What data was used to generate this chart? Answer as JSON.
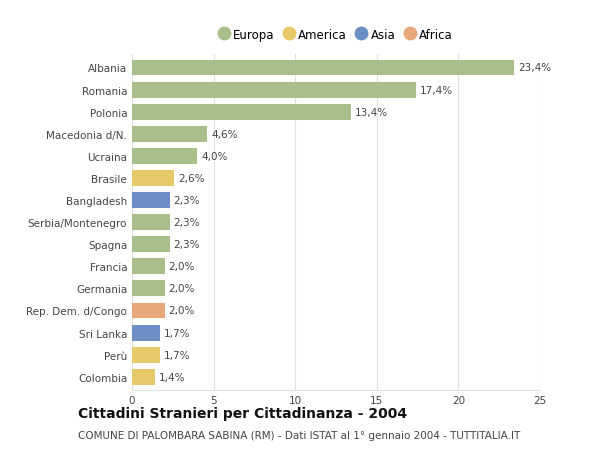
{
  "categories": [
    "Albania",
    "Romania",
    "Polonia",
    "Macedonia d/N.",
    "Ucraina",
    "Brasile",
    "Bangladesh",
    "Serbia/Montenegro",
    "Spagna",
    "Francia",
    "Germania",
    "Rep. Dem. d/Congo",
    "Sri Lanka",
    "Perù",
    "Colombia"
  ],
  "values": [
    23.4,
    17.4,
    13.4,
    4.6,
    4.0,
    2.6,
    2.3,
    2.3,
    2.3,
    2.0,
    2.0,
    2.0,
    1.7,
    1.7,
    1.4
  ],
  "labels": [
    "23,4%",
    "17,4%",
    "13,4%",
    "4,6%",
    "4,0%",
    "2,6%",
    "2,3%",
    "2,3%",
    "2,3%",
    "2,0%",
    "2,0%",
    "2,0%",
    "1,7%",
    "1,7%",
    "1,4%"
  ],
  "continents": [
    "Europa",
    "Europa",
    "Europa",
    "Europa",
    "Europa",
    "America",
    "Asia",
    "Europa",
    "Europa",
    "Europa",
    "Europa",
    "Africa",
    "Asia",
    "America",
    "America"
  ],
  "continent_colors": {
    "Europa": "#a8bf8a",
    "America": "#e8c96a",
    "Asia": "#6b8ec4",
    "Africa": "#e8a87c"
  },
  "legend_order": [
    "Europa",
    "America",
    "Asia",
    "Africa"
  ],
  "xlim": [
    0,
    25
  ],
  "xticks": [
    0,
    5,
    10,
    15,
    20,
    25
  ],
  "title": "Cittadini Stranieri per Cittadinanza - 2004",
  "subtitle": "COMUNE DI PALOMBARA SABINA (RM) - Dati ISTAT al 1° gennaio 2004 - TUTTITALIA.IT",
  "background_color": "#ffffff",
  "grid_color": "#e0e0e0",
  "bar_height": 0.72,
  "title_fontsize": 10,
  "subtitle_fontsize": 7.5,
  "label_fontsize": 7.5,
  "tick_fontsize": 7.5,
  "legend_fontsize": 8.5
}
